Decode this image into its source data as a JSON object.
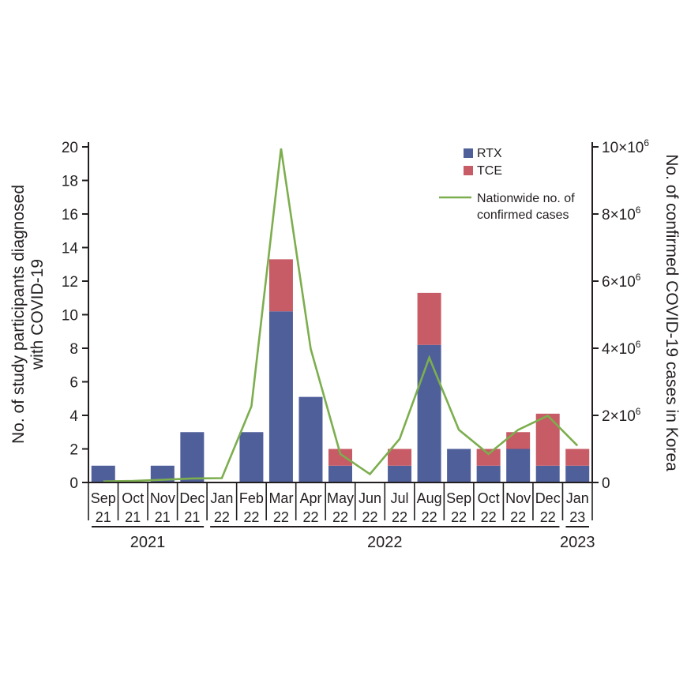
{
  "chart_data": {
    "type": "bar",
    "stacked": true,
    "categories": [
      [
        "Sep",
        "21"
      ],
      [
        "Oct",
        "21"
      ],
      [
        "Nov",
        "21"
      ],
      [
        "Dec",
        "21"
      ],
      [
        "Jan",
        "22"
      ],
      [
        "Feb",
        "22"
      ],
      [
        "Mar",
        "22"
      ],
      [
        "Apr",
        "22"
      ],
      [
        "May",
        "22"
      ],
      [
        "Jun",
        "22"
      ],
      [
        "Jul",
        "22"
      ],
      [
        "Aug",
        "22"
      ],
      [
        "Sep",
        "22"
      ],
      [
        "Oct",
        "22"
      ],
      [
        "Nov",
        "22"
      ],
      [
        "Dec",
        "22"
      ],
      [
        "Jan",
        "23"
      ]
    ],
    "series": [
      {
        "name": "RTX",
        "color": "#4f5f9a",
        "values": [
          1,
          0,
          1,
          3,
          0,
          3,
          10.2,
          5.1,
          1,
          0,
          1,
          8.2,
          2,
          1,
          2,
          1,
          1
        ]
      },
      {
        "name": "TCE",
        "color": "#c75b66",
        "values": [
          0,
          0,
          0,
          0,
          0,
          0,
          3.1,
          0,
          1,
          0,
          1,
          3.1,
          0,
          1,
          1,
          3.1,
          1
        ]
      }
    ],
    "line_series": {
      "name_lines": [
        "Nationwide no. of",
        "confirmed cases"
      ],
      "color": "#7cae4e",
      "axis": "right",
      "values": [
        30000,
        45000,
        80000,
        120000,
        130000,
        2270000,
        9950000,
        3980000,
        850000,
        250000,
        1300000,
        3720000,
        1570000,
        850000,
        1570000,
        1990000,
        1100000
      ]
    },
    "y_left": {
      "label_lines": [
        "No. of study participants diagnosed",
        "with COVID-19"
      ],
      "min": 0,
      "max": 20,
      "ticks": [
        0,
        2,
        4,
        6,
        8,
        10,
        12,
        14,
        16,
        18,
        20
      ]
    },
    "y_right": {
      "label": "No. of confirmed COVID-19 cases in Korea",
      "min": 0,
      "max": 10000000,
      "ticks": [
        {
          "value": 0,
          "base": "0",
          "exp": ""
        },
        {
          "value": 2000000,
          "base": "2×10",
          "exp": "6"
        },
        {
          "value": 4000000,
          "base": "4×10",
          "exp": "6"
        },
        {
          "value": 6000000,
          "base": "6×10",
          "exp": "6"
        },
        {
          "value": 8000000,
          "base": "8×10",
          "exp": "6"
        },
        {
          "value": 10000000,
          "base": "10×10",
          "exp": "6"
        }
      ]
    },
    "year_groups": [
      {
        "label": "2021",
        "start": 0,
        "end": 3
      },
      {
        "label": "2022",
        "start": 4,
        "end": 15
      },
      {
        "label": "2023",
        "start": 16,
        "end": 16
      }
    ],
    "legend_position": "top-right",
    "grid": false
  }
}
